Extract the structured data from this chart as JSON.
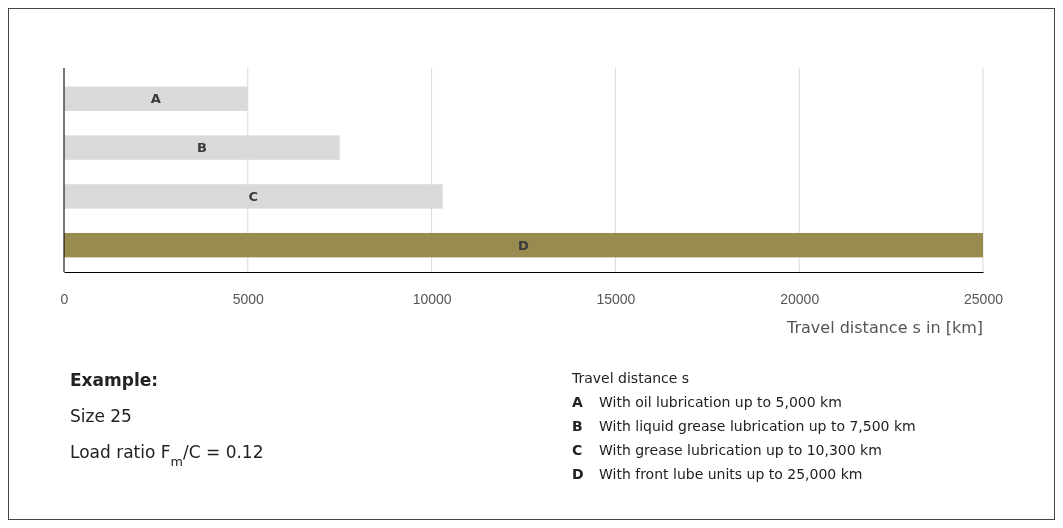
{
  "chart_data": {
    "type": "bar",
    "orientation": "horizontal",
    "categories": [
      "A",
      "B",
      "C",
      "D"
    ],
    "values": [
      5000,
      7500,
      10300,
      25000
    ],
    "colors": [
      "#d9d9d9",
      "#d9d9d9",
      "#d9d9d9",
      "#978b50"
    ],
    "xlim": [
      0,
      25000
    ],
    "xticks": [
      0,
      5000,
      10000,
      15000,
      20000,
      25000
    ],
    "grid": "x",
    "xlabel": "Travel distance s in [km]",
    "annotations": [
      "Example:",
      "Size 25",
      "Load ratio F$_{m}$/C = 0.12",
      "Travel distance s",
      "A With oil lubrication up to 5,000 km",
      "B With liquid grease lubrication up to 7,500 km",
      "C With grease lubrication up to 10,300 km",
      "D With front lube units up to 25,000 km"
    ]
  }
}
